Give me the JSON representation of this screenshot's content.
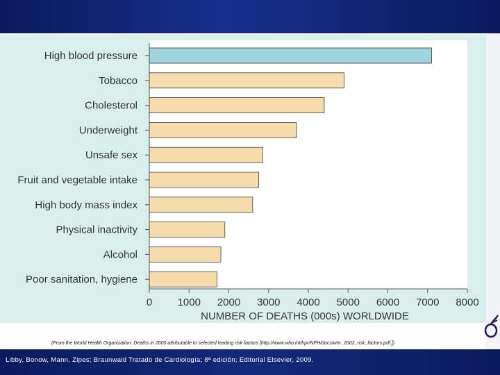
{
  "chart_data": {
    "type": "bar",
    "orientation": "horizontal",
    "categories": [
      "High blood pressure",
      "Tobacco",
      "Cholesterol",
      "Underweight",
      "Unsafe sex",
      "Fruit and vegetable intake",
      "High body mass index",
      "Physical inactivity",
      "Alcohol",
      "Poor sanitation, hygiene"
    ],
    "values": [
      7100,
      4900,
      4400,
      3700,
      2850,
      2750,
      2600,
      1900,
      1800,
      1700
    ],
    "highlight_index": 0,
    "xlabel": "NUMBER OF DEATHS (000s) WORLDWIDE",
    "ylabel": "",
    "xlim": [
      0,
      8000
    ],
    "xticks": [
      "0",
      "1000",
      "2000",
      "3000",
      "4000",
      "5000",
      "6000",
      "7000",
      "8000"
    ],
    "colors": {
      "highlight": "#9fd3de",
      "default": "#f7dcab",
      "outline": "#3a3a3a",
      "panel": "#d9efec"
    }
  },
  "source_note": "(From the World Health Organization: Deaths in 2000 attributable to selected leading risk factors [http://www.who.int/hpr/NPH/docs/whr_2002_risk_factors.pdf.])",
  "citation": "Libby, Bonow, Mann, Zipes; Braunwald Tratado de Cardiología; 8ª edición; Editorial Elsevier, 2009."
}
